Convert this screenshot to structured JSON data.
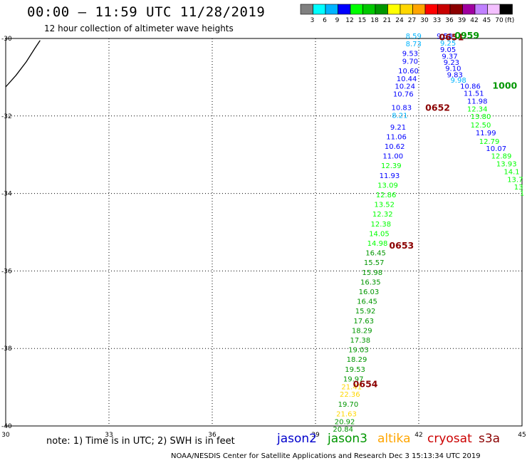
{
  "title": "00:00 – 11:59 UTC 11/28/2019",
  "subtitle": "12 hour collection of altimeter wave heights",
  "note": "note:  1) Time is in UTC;  2) SWH is in feet",
  "footer": "NOAA/NESDIS Center for Satellite Applications and Research     Dec  3 15:13:34 UTC 2019",
  "color_scale": {
    "labels": [
      "3",
      "6",
      "9",
      "12",
      "15",
      "18",
      "21",
      "24",
      "27",
      "30",
      "33",
      "36",
      "39",
      "42",
      "45",
      "70",
      "(ft)"
    ],
    "colors": [
      "#808080",
      "#00ffff",
      "#00b4ff",
      "#0000ff",
      "#00ff00",
      "#00c800",
      "#009600",
      "#ffff00",
      "#ffd700",
      "#ffa500",
      "#ff0000",
      "#c80000",
      "#8b0000",
      "#a000a0",
      "#c080ff",
      "#f4c0ff",
      "#000000"
    ]
  },
  "satellites": [
    {
      "name": "jason2",
      "color": "#0000cc"
    },
    {
      "name": "jason3",
      "color": "#009600"
    },
    {
      "name": "altika",
      "color": "#ffa500"
    },
    {
      "name": "cryosat",
      "color": "#cc0000"
    },
    {
      "name": "s3a",
      "color": "#8b0000"
    }
  ],
  "map": {
    "lon_range": [
      30,
      45
    ],
    "lat_range": [
      -40,
      -30
    ],
    "x_ticks": [
      {
        "lon": 30,
        "label": "30"
      },
      {
        "lon": 33,
        "label": "33"
      },
      {
        "lon": 36,
        "label": "36"
      },
      {
        "lon": 39,
        "label": "39"
      },
      {
        "lon": 42,
        "label": "42"
      },
      {
        "lon": 45,
        "label": "45"
      }
    ],
    "y_ticks": [
      {
        "lat": -30,
        "label": "-30"
      },
      {
        "lat": -32,
        "label": "-32"
      },
      {
        "lat": -34,
        "label": "-34"
      },
      {
        "lat": -36,
        "label": "-36"
      },
      {
        "lat": -38,
        "label": "-38"
      },
      {
        "lat": -40,
        "label": "-40"
      }
    ],
    "coastline": [
      [
        30.0,
        -31.25
      ],
      [
        30.3,
        -30.95
      ],
      [
        30.6,
        -30.6
      ],
      [
        30.85,
        -30.25
      ],
      [
        31.0,
        -30.05
      ]
    ]
  },
  "time_labels": [
    {
      "text": "0651",
      "lon": 42.95,
      "lat": -30.05,
      "color": "#8b0000"
    },
    {
      "text": "0959",
      "lon": 43.4,
      "lat": -30.0,
      "color": "#009600"
    },
    {
      "text": "1000",
      "lon": 44.5,
      "lat": -31.3,
      "color": "#009600"
    },
    {
      "text": "0652",
      "lon": 42.55,
      "lat": -31.87,
      "color": "#8b0000"
    },
    {
      "text": "0653",
      "lon": 41.5,
      "lat": -35.42,
      "color": "#8b0000"
    },
    {
      "text": "0654",
      "lon": 40.45,
      "lat": -39.0,
      "color": "#8b0000"
    }
  ],
  "observations": [
    {
      "v": "8.59",
      "lon": 41.85,
      "lat": -30.0,
      "color": "#00b4ff"
    },
    {
      "v": "9.58",
      "lon": 42.75,
      "lat": -30.0,
      "color": "#0000ff"
    },
    {
      "v": "8.73",
      "lon": 41.85,
      "lat": -30.2,
      "color": "#00b4ff"
    },
    {
      "v": "9.25",
      "lon": 42.85,
      "lat": -30.18,
      "color": "#00b4ff"
    },
    {
      "v": "9.53",
      "lon": 41.75,
      "lat": -30.45,
      "color": "#0000ff"
    },
    {
      "v": "9.05",
      "lon": 42.85,
      "lat": -30.35,
      "color": "#0000ff"
    },
    {
      "v": "9.70",
      "lon": 41.75,
      "lat": -30.65,
      "color": "#0000ff"
    },
    {
      "v": "9.37",
      "lon": 42.9,
      "lat": -30.52,
      "color": "#0000ff"
    },
    {
      "v": "10.60",
      "lon": 41.7,
      "lat": -30.9,
      "color": "#0000ff"
    },
    {
      "v": "9.23",
      "lon": 42.95,
      "lat": -30.68,
      "color": "#0000ff"
    },
    {
      "v": "10.44",
      "lon": 41.65,
      "lat": -31.1,
      "color": "#0000ff"
    },
    {
      "v": "9.10",
      "lon": 43.0,
      "lat": -30.84,
      "color": "#0000ff"
    },
    {
      "v": "10.24",
      "lon": 41.6,
      "lat": -31.3,
      "color": "#0000ff"
    },
    {
      "v": "9.83",
      "lon": 43.05,
      "lat": -31.0,
      "color": "#0000ff"
    },
    {
      "v": "10.76",
      "lon": 41.55,
      "lat": -31.5,
      "color": "#0000ff"
    },
    {
      "v": "9.98",
      "lon": 43.15,
      "lat": -31.14,
      "color": "#00b4ff"
    },
    {
      "v": "10.86",
      "lon": 43.5,
      "lat": -31.3,
      "color": "#0000ff"
    },
    {
      "v": "10.83",
      "lon": 41.5,
      "lat": -31.85,
      "color": "#0000ff"
    },
    {
      "v": "11.51",
      "lon": 43.6,
      "lat": -31.48,
      "color": "#0000ff"
    },
    {
      "v": "11.98",
      "lon": 43.7,
      "lat": -31.68,
      "color": "#0000ff"
    },
    {
      "v": "12.34",
      "lon": 43.7,
      "lat": -31.88,
      "color": "#00ff00"
    },
    {
      "v": "8.21",
      "lon": 41.45,
      "lat": -32.05,
      "color": "#00b4ff"
    },
    {
      "v": "13.80",
      "lon": 43.8,
      "lat": -32.08,
      "color": "#00ff00"
    },
    {
      "v": "9.21",
      "lon": 41.4,
      "lat": -32.35,
      "color": "#0000ff"
    },
    {
      "v": "12.50",
      "lon": 43.8,
      "lat": -32.3,
      "color": "#00ff00"
    },
    {
      "v": "11.06",
      "lon": 41.35,
      "lat": -32.6,
      "color": "#0000ff"
    },
    {
      "v": "11.99",
      "lon": 43.95,
      "lat": -32.5,
      "color": "#0000ff"
    },
    {
      "v": "12.79",
      "lon": 44.05,
      "lat": -32.72,
      "color": "#00ff00"
    },
    {
      "v": "10.62",
      "lon": 41.3,
      "lat": -32.85,
      "color": "#0000ff"
    },
    {
      "v": "10.07",
      "lon": 44.25,
      "lat": -32.9,
      "color": "#0000ff"
    },
    {
      "v": "12.89",
      "lon": 44.4,
      "lat": -33.1,
      "color": "#00ff00"
    },
    {
      "v": "11.00",
      "lon": 41.25,
      "lat": -33.1,
      "color": "#0000ff"
    },
    {
      "v": "13.93",
      "lon": 44.55,
      "lat": -33.3,
      "color": "#00ff00"
    },
    {
      "v": "12.39",
      "lon": 41.2,
      "lat": -33.35,
      "color": "#00ff00"
    },
    {
      "v": "14.1",
      "lon": 44.7,
      "lat": -33.5,
      "color": "#00ff00"
    },
    {
      "v": "11.93",
      "lon": 41.15,
      "lat": -33.6,
      "color": "#0000ff"
    },
    {
      "v": "13.7",
      "lon": 44.8,
      "lat": -33.7,
      "color": "#00ff00"
    },
    {
      "v": "13.09",
      "lon": 41.1,
      "lat": -33.85,
      "color": "#00ff00"
    },
    {
      "v": "13",
      "lon": 44.9,
      "lat": -33.9,
      "color": "#00ff00"
    },
    {
      "v": "12.86",
      "lon": 41.05,
      "lat": -34.1,
      "color": "#00ff00"
    },
    {
      "v": "1",
      "lon": 45.0,
      "lat": -34.05,
      "color": "#00ff00"
    },
    {
      "v": "13.52",
      "lon": 41.0,
      "lat": -34.35,
      "color": "#00ff00"
    },
    {
      "v": "12.32",
      "lon": 40.95,
      "lat": -34.6,
      "color": "#00ff00"
    },
    {
      "v": "12.38",
      "lon": 40.9,
      "lat": -34.85,
      "color": "#00ff00"
    },
    {
      "v": "14.05",
      "lon": 40.85,
      "lat": -35.1,
      "color": "#00ff00"
    },
    {
      "v": "14.98",
      "lon": 40.8,
      "lat": -35.35,
      "color": "#00ff00"
    },
    {
      "v": "16.45",
      "lon": 40.75,
      "lat": -35.6,
      "color": "#009600"
    },
    {
      "v": "15.57",
      "lon": 40.7,
      "lat": -35.85,
      "color": "#009600"
    },
    {
      "v": "15.98",
      "lon": 40.65,
      "lat": -36.1,
      "color": "#009600"
    },
    {
      "v": "16.35",
      "lon": 40.6,
      "lat": -36.35,
      "color": "#009600"
    },
    {
      "v": "16.03",
      "lon": 40.55,
      "lat": -36.6,
      "color": "#009600"
    },
    {
      "v": "16.45",
      "lon": 40.5,
      "lat": -36.85,
      "color": "#009600"
    },
    {
      "v": "15.92",
      "lon": 40.45,
      "lat": -37.1,
      "color": "#009600"
    },
    {
      "v": "17.63",
      "lon": 40.4,
      "lat": -37.35,
      "color": "#009600"
    },
    {
      "v": "18.29",
      "lon": 40.35,
      "lat": -37.6,
      "color": "#009600"
    },
    {
      "v": "17.38",
      "lon": 40.3,
      "lat": -37.85,
      "color": "#009600"
    },
    {
      "v": "19.03",
      "lon": 40.25,
      "lat": -38.1,
      "color": "#009600"
    },
    {
      "v": "18.29",
      "lon": 40.2,
      "lat": -38.35,
      "color": "#009600"
    },
    {
      "v": "19.53",
      "lon": 40.15,
      "lat": -38.6,
      "color": "#009600"
    },
    {
      "v": "19.97",
      "lon": 40.1,
      "lat": -38.85,
      "color": "#009600"
    },
    {
      "v": "21.41",
      "lon": 40.05,
      "lat": -39.05,
      "color": "#ffd700"
    },
    {
      "v": "22.36",
      "lon": 40.0,
      "lat": -39.25,
      "color": "#ffd700"
    },
    {
      "v": "19.70",
      "lon": 39.95,
      "lat": -39.5,
      "color": "#009600"
    },
    {
      "v": "21.63",
      "lon": 39.9,
      "lat": -39.75,
      "color": "#ffd700"
    },
    {
      "v": "20.92",
      "lon": 39.85,
      "lat": -39.95,
      "color": "#009600"
    },
    {
      "v": "20.84",
      "lon": 39.8,
      "lat": -40.15,
      "color": "#009600"
    }
  ]
}
